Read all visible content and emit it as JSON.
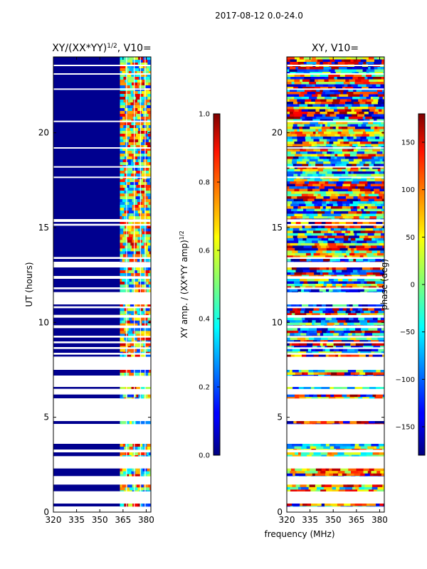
{
  "suptitle": "2017-08-12 0.0-24.0",
  "chart_data": [
    {
      "type": "heatmap",
      "title_prefix": "XY/(XX*YY)",
      "title_exponent": "1/2",
      "title_suffix": ", V10=",
      "xlabel": "",
      "ylabel": "UT (hours)",
      "xlim": [
        320,
        383
      ],
      "ylim": [
        0,
        24
      ],
      "xticks": [
        320,
        335,
        350,
        365,
        380
      ],
      "yticks": [
        0,
        5,
        10,
        15,
        20
      ],
      "colormap": "jet",
      "colorbar": {
        "label_prefix": "XY amp. / (XX*YY amp)",
        "label_exponent": "1/2",
        "range": [
          0.0,
          1.0
        ],
        "ticks": [
          "0.0",
          "0.2",
          "0.4",
          "0.6",
          "0.8",
          "1.0"
        ]
      },
      "data_bands_hours": [
        [
          0.3,
          0.45
        ],
        [
          1.1,
          1.45
        ],
        [
          1.9,
          2.3
        ],
        [
          2.95,
          3.15
        ],
        [
          3.3,
          3.6
        ],
        [
          4.65,
          4.8
        ],
        [
          6.0,
          6.2
        ],
        [
          6.5,
          6.6
        ],
        [
          7.2,
          7.5
        ],
        [
          8.2,
          8.3
        ],
        [
          8.4,
          8.6
        ],
        [
          8.7,
          8.9
        ],
        [
          9.0,
          9.2
        ],
        [
          9.3,
          9.7
        ],
        [
          9.85,
          10.25
        ],
        [
          10.4,
          10.75
        ],
        [
          10.85,
          10.95
        ],
        [
          11.6,
          11.75
        ],
        [
          11.85,
          12.3
        ],
        [
          12.45,
          12.9
        ],
        [
          13.2,
          13.35
        ],
        [
          13.45,
          15.1
        ],
        [
          15.2,
          15.3
        ],
        [
          15.45,
          24.0
        ]
      ],
      "gaps_hours": [
        17.65,
        18.2,
        19.2,
        20.6,
        22.3,
        23.1,
        23.55
      ],
      "value_regions": [
        {
          "freq": [
            320,
            363
          ],
          "value": 0.02
        },
        {
          "freq": [
            363,
            383
          ],
          "value": "mixed 0.1-0.9"
        }
      ]
    },
    {
      "type": "heatmap",
      "title": "XY, V10=",
      "xlabel": "frequency (MHz)",
      "ylabel": "",
      "xlim": [
        320,
        383
      ],
      "ylim": [
        0,
        24
      ],
      "xticks": [
        320,
        335,
        350,
        365,
        380
      ],
      "yticks": [
        0,
        5,
        10,
        15,
        20
      ],
      "colormap": "jet",
      "colorbar": {
        "label": "phase (deg)",
        "range": [
          -180,
          180
        ],
        "ticks": [
          "−150",
          "−100",
          "−50",
          "0",
          "50",
          "100",
          "150"
        ]
      }
    }
  ]
}
